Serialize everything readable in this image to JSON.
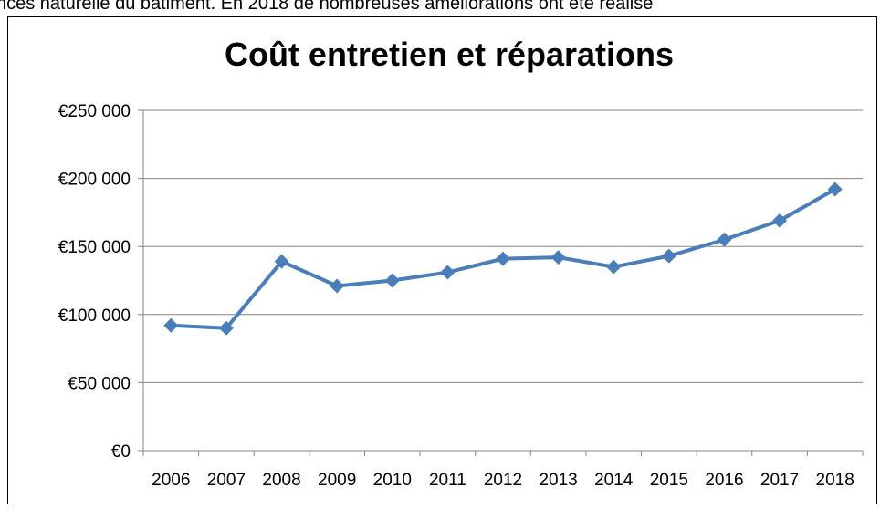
{
  "page_text": "nces naturelle du bâtiment. En 2018 de nombreuses améliorations ont été réalisé",
  "chart_data": {
    "type": "line",
    "title": "Coût entretien et réparations",
    "categories": [
      "2006",
      "2007",
      "2008",
      "2009",
      "2010",
      "2011",
      "2012",
      "2013",
      "2014",
      "2015",
      "2016",
      "2017",
      "2018"
    ],
    "series": [
      {
        "name": "Coût",
        "color": "#4a7ebb",
        "values": [
          92000,
          90000,
          139000,
          121000,
          125000,
          131000,
          141000,
          142000,
          135000,
          143000,
          155000,
          169000,
          192000
        ]
      }
    ],
    "ylim": [
      0,
      250000
    ],
    "yticks": [
      {
        "value": 0,
        "label": "€0"
      },
      {
        "value": 50000,
        "label": "€50 000"
      },
      {
        "value": 100000,
        "label": "€100 000"
      },
      {
        "value": 150000,
        "label": "€150 000"
      },
      {
        "value": 200000,
        "label": "€200 000"
      },
      {
        "value": 250000,
        "label": "€250 000"
      }
    ],
    "grid": true
  }
}
